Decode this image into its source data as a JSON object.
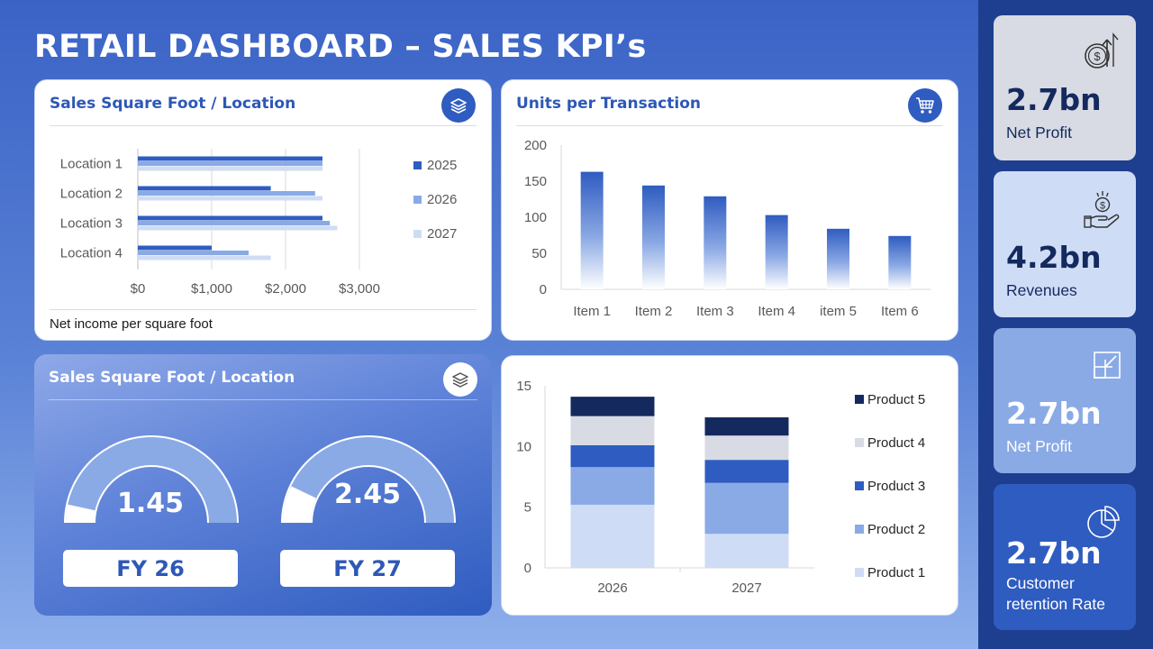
{
  "page_title": "RETAIL DASHBOARD – SALES KPI’s",
  "colors": {
    "dark_navy": "#14295e",
    "blue": "#2f5cc0",
    "mid_blue": "#8aaae6",
    "light_blue": "#cfdcf6",
    "light_gray": "#d8dbe3",
    "panel": "#1e3f8f"
  },
  "cards": {
    "sales_sqft": {
      "title": "Sales Square Foot / Location",
      "icon": "layers-icon",
      "footnote": "Net income per square foot"
    },
    "units": {
      "title": "Units per Transaction",
      "icon": "cart-icon"
    },
    "gauges": {
      "title": "Sales Square Foot / Location",
      "icon": "layers-icon",
      "items": [
        {
          "value": "1.45",
          "label": "FY 26"
        },
        {
          "value": "2.45",
          "label": "FY 27"
        }
      ]
    }
  },
  "chart_data": [
    {
      "type": "bar",
      "orientation": "horizontal",
      "categories": [
        "Location 1",
        "Location 2",
        "Location 3",
        "Location 4"
      ],
      "series": [
        {
          "name": "2025",
          "values": [
            2500,
            1800,
            2500,
            1000
          ]
        },
        {
          "name": "2026",
          "values": [
            2500,
            2400,
            2600,
            1500
          ]
        },
        {
          "name": "2027",
          "values": [
            2500,
            2500,
            2700,
            1800
          ]
        }
      ],
      "x_ticks": [
        "$0",
        "$1,000",
        "$2,000",
        "$3,000"
      ],
      "xlim": [
        0,
        3000
      ],
      "legend": "right"
    },
    {
      "type": "bar",
      "categories": [
        "Item 1",
        "Item 2",
        "Item 3",
        "Item 4",
        "item 5",
        "Item 6"
      ],
      "values": [
        163,
        144,
        129,
        103,
        84,
        74
      ],
      "y_ticks": [
        "0",
        "50",
        "100",
        "150",
        "200"
      ],
      "ylim": [
        0,
        200
      ],
      "grid": false
    },
    {
      "type": "bar",
      "stacked": true,
      "categories": [
        "2026",
        "2027"
      ],
      "series": [
        {
          "name": "Product 1",
          "values": [
            5.2,
            2.8
          ]
        },
        {
          "name": "Product 2",
          "values": [
            3.1,
            4.2
          ]
        },
        {
          "name": "Product 3",
          "values": [
            1.8,
            1.9
          ]
        },
        {
          "name": "Product 4",
          "values": [
            2.4,
            2.0
          ]
        },
        {
          "name": "Product 5",
          "values": [
            1.6,
            1.5
          ]
        }
      ],
      "y_ticks": [
        "0",
        "5",
        "10",
        "15"
      ],
      "ylim": [
        0,
        15
      ],
      "legend": "right"
    }
  ],
  "kpis": [
    {
      "value": "2.7bn",
      "label": "Net Profit",
      "icon": "money-growth-icon",
      "bg": "#d8dbe3",
      "fg": "#14295e"
    },
    {
      "value": "4.2bn",
      "label": "Revenues",
      "icon": "hand-money-icon",
      "bg": "#cfdcf6",
      "fg": "#14295e"
    },
    {
      "value": "2.7bn",
      "label": "Net Profit",
      "icon": "collapse-icon",
      "bg": "#8aaae6",
      "fg": "#ffffff"
    },
    {
      "value": "2.7bn",
      "label": "Customer retention Rate",
      "icon": "pie-chart-icon",
      "bg": "#2f5cc0",
      "fg": "#ffffff"
    }
  ]
}
